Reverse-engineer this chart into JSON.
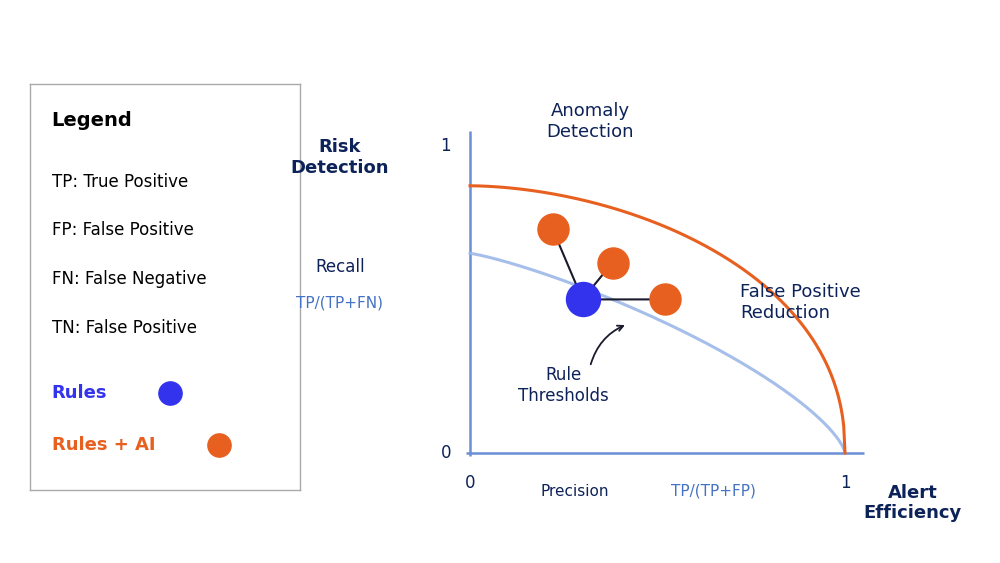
{
  "background_color": "#ffffff",
  "text_color": "#0d2259",
  "axis_color": "#6b8fd4",
  "blue_curve_color": "#9db8e8",
  "orange_curve_color": "#e86020",
  "blue_dot_color": "#3333ee",
  "orange_dot_color": "#e86020",
  "arrow_color": "#1a1a2e",
  "label_color": "#4472c4",
  "blue_dot": [
    0.3,
    0.5
  ],
  "orange_dots": [
    [
      0.22,
      0.73
    ],
    [
      0.38,
      0.62
    ],
    [
      0.52,
      0.5
    ]
  ],
  "legend_entries": [
    "TP: True Positive",
    "FP: False Positive",
    "FN: False Negative",
    "TN: False Positive"
  ]
}
